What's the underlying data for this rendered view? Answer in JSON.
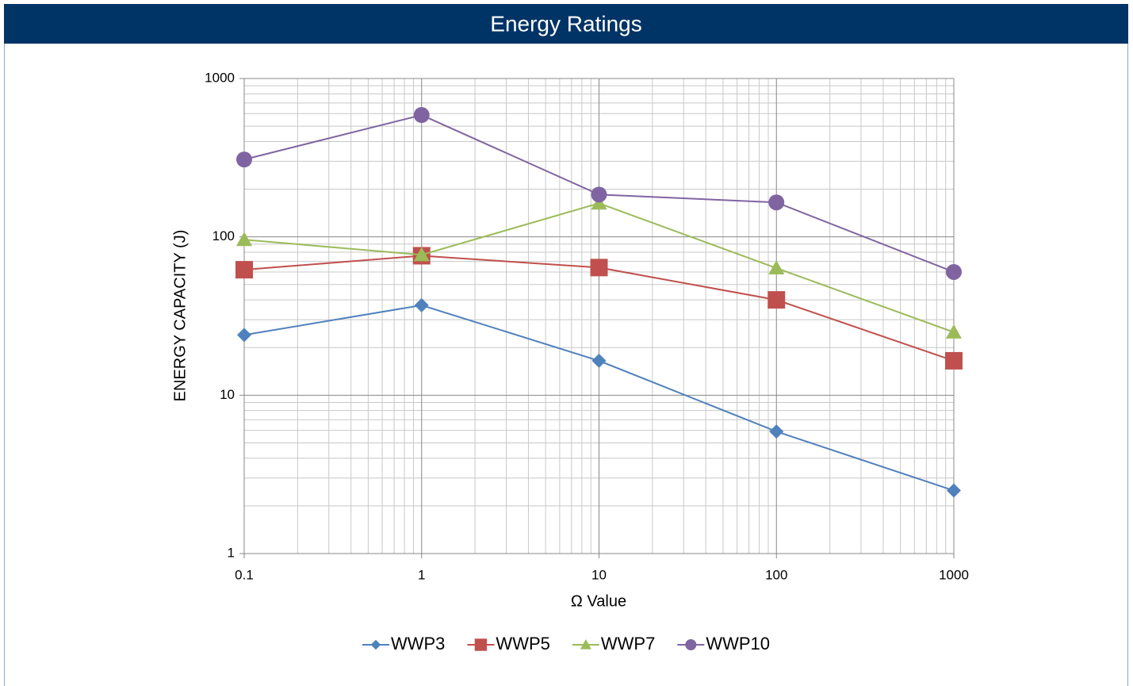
{
  "chart_data": {
    "type": "line",
    "title": "Energy Ratings",
    "xlabel": "Ω Value",
    "ylabel": "ENERGY CAPACITY (J)",
    "x": [
      0.1,
      1,
      10,
      100,
      1000
    ],
    "xlim": [
      0.1,
      1000
    ],
    "xticks": [
      0.1,
      1,
      10,
      100,
      1000
    ],
    "ylim": [
      1,
      1000
    ],
    "yticks": [
      1,
      10,
      100,
      1000
    ],
    "xlog": true,
    "ylog": true,
    "grid": true,
    "minor_grid": true,
    "legend": "bottom",
    "series": [
      {
        "name": "WWP3",
        "color": "#4f81bd",
        "marker": "diamond",
        "values": [
          24,
          37,
          16.5,
          5.9,
          2.5
        ]
      },
      {
        "name": "WWP5",
        "color": "#c0504d",
        "marker": "square",
        "values": [
          62,
          76,
          64,
          40,
          16.5
        ]
      },
      {
        "name": "WWP7",
        "color": "#9bbb59",
        "marker": "triangle",
        "values": [
          96,
          77,
          163,
          63.5,
          25
        ]
      },
      {
        "name": "WWP10",
        "color": "#8064a2",
        "marker": "circle",
        "values": [
          308,
          588,
          185,
          165,
          60
        ]
      }
    ]
  }
}
